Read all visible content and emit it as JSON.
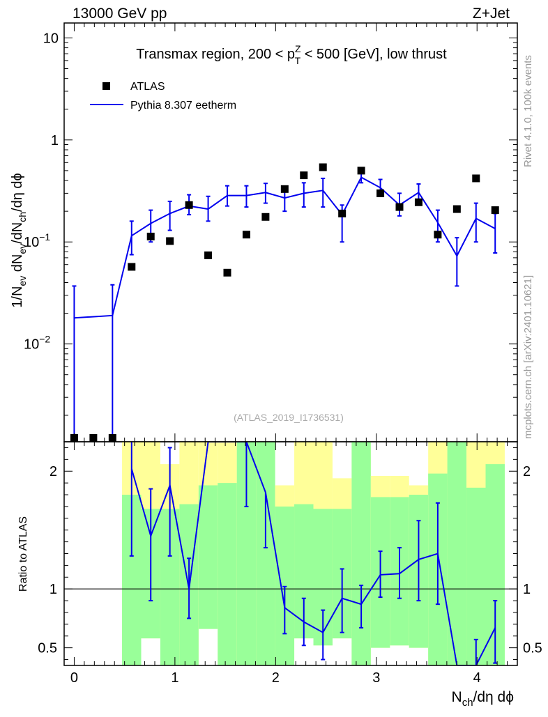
{
  "header": {
    "energy_label": "13000 GeV pp",
    "process_label": "Z+Jet"
  },
  "side_labels": {
    "rivet": "Rivet 4.1.0,  100k events",
    "mcplots": "mcplots.cern.ch [arXiv:2401.10621]"
  },
  "colors": {
    "mc_line": "#0000ee",
    "data_marker": "#000000",
    "band_inner": "#99ff99",
    "band_outer": "#ffff99",
    "frame": "#000000"
  },
  "chart_data": [
    {
      "type": "scatter",
      "name": "main",
      "title": "Transmax region, 200 < p_T^Z < 500 [GeV], low thrust",
      "title_parts": {
        "pre": "Transmax region, 200 < p",
        "sup": "Z",
        "sub": "T",
        "post": " < 500 [GeV], low thrust"
      },
      "ylabel": "1/N_ev dN_ev/dN_ch/dη dϕ",
      "yscale": "log",
      "ylim": [
        0.0011,
        14
      ],
      "xlim": [
        -0.1,
        4.4
      ],
      "yticks": [
        {
          "value": 10,
          "label": "10",
          "exp": ""
        },
        {
          "value": 1,
          "label": "1",
          "exp": ""
        },
        {
          "value": 0.1,
          "label": "10",
          "exp": "−1"
        },
        {
          "value": 0.01,
          "label": "10",
          "exp": "−2"
        }
      ],
      "watermark": "(ATLAS_2019_I1736531)",
      "legend": [
        {
          "label": "ATLAS",
          "kind": "marker"
        },
        {
          "label": "Pythia 8.307 eetherm",
          "kind": "line"
        }
      ],
      "data_series": {
        "name": "ATLAS",
        "x": [
          0,
          0.19,
          0.38,
          0.57,
          0.76,
          0.95,
          1.14,
          1.33,
          1.52,
          1.71,
          1.9,
          2.09,
          2.28,
          2.47,
          2.66,
          2.85,
          3.04,
          3.23,
          3.42,
          3.61,
          3.8,
          3.99,
          4.18
        ],
        "y": [
          0.0012,
          0.0012,
          0.0012,
          0.057,
          0.113,
          0.102,
          0.23,
          0.074,
          0.05,
          0.118,
          0.176,
          0.33,
          0.45,
          0.54,
          0.19,
          0.5,
          0.3,
          0.22,
          0.245,
          0.118,
          0.21,
          0.42,
          0.205
        ]
      },
      "mc_series": {
        "name": "Pythia 8.307 eetherm",
        "x": [
          0,
          0.38,
          0.57,
          0.76,
          0.95,
          1.14,
          1.33,
          1.52,
          1.71,
          1.9,
          2.09,
          2.28,
          2.47,
          2.66,
          2.85,
          3.04,
          3.23,
          3.42,
          3.61,
          3.8,
          3.99,
          4.18
        ],
        "y": [
          0.018,
          0.019,
          0.115,
          0.152,
          0.19,
          0.225,
          0.21,
          0.285,
          0.285,
          0.305,
          0.27,
          0.3,
          0.32,
          0.185,
          0.43,
          0.34,
          0.23,
          0.305,
          0.155,
          0.073,
          0.17,
          0.135
        ],
        "ylo": [
          0.0011,
          0.0011,
          0.075,
          0.1,
          0.13,
          0.185,
          0.16,
          0.225,
          0.22,
          0.24,
          0.2,
          0.22,
          0.22,
          0.1,
          0.38,
          0.28,
          0.18,
          0.24,
          0.1,
          0.037,
          0.1,
          0.078
        ],
        "yhi": [
          0.037,
          0.038,
          0.16,
          0.205,
          0.25,
          0.29,
          0.28,
          0.355,
          0.355,
          0.375,
          0.35,
          0.38,
          0.42,
          0.23,
          0.48,
          0.41,
          0.3,
          0.37,
          0.205,
          0.11,
          0.24,
          0.19
        ]
      },
      "errorbar_points": [
        0,
        1,
        0,
        2,
        3,
        4,
        5,
        6,
        7,
        8,
        9,
        10,
        11,
        12,
        13,
        14,
        15,
        16,
        17,
        18,
        19,
        20,
        21
      ],
      "xticks": [
        0,
        1,
        2,
        3,
        4
      ]
    },
    {
      "type": "line",
      "name": "ratio",
      "ylabel": "Ratio to ATLAS",
      "xlabel": "N_ch/dη dϕ",
      "xlabel_parts": {
        "pre": "N",
        "sub": "ch",
        "post": "/dη dϕ"
      },
      "yscale": "linear",
      "ylim": [
        0.35,
        2.25
      ],
      "xlim": [
        -0.1,
        4.4
      ],
      "xticks": [
        0,
        1,
        2,
        3,
        4
      ],
      "yticks": [
        2,
        1,
        0.5
      ],
      "ytick_labels": [
        "2",
        "1",
        "0.5"
      ],
      "reference_line": 1,
      "bands": {
        "edges": [
          0.475,
          0.665,
          0.855,
          1.045,
          1.235,
          1.425,
          1.615,
          1.805,
          1.995,
          2.185,
          2.375,
          2.565,
          2.755,
          2.945,
          3.135,
          3.325,
          3.515,
          3.705,
          3.895,
          4.085,
          4.275
        ],
        "inner_lo": [
          0.35,
          0.35,
          0.35,
          0.35,
          0.35,
          0.35,
          0.35,
          0.35,
          0.35,
          0.35,
          0.35,
          0.35,
          0.35,
          0.35,
          0.35,
          0.35,
          0.35,
          0.35,
          0.35,
          0.35
        ],
        "inner_hi": [
          1.8,
          1.68,
          1.68,
          1.72,
          1.88,
          1.9,
          2.25,
          2.25,
          1.7,
          1.72,
          1.68,
          1.68,
          2.25,
          1.78,
          1.78,
          1.8,
          1.98,
          2.25,
          1.86,
          2.06
        ],
        "outer_lo": [
          0.35,
          0.58,
          0.35,
          0.35,
          0.66,
          0.35,
          0.35,
          0.35,
          0.35,
          0.58,
          0.52,
          0.58,
          0.35,
          0.5,
          0.52,
          0.5,
          0.35,
          0.35,
          0.35,
          0.35
        ],
        "outer_hi": [
          2.25,
          2.25,
          2.06,
          2.25,
          2.25,
          2.25,
          2.25,
          2.25,
          1.88,
          2.25,
          2.25,
          1.94,
          2.25,
          1.96,
          1.96,
          1.88,
          2.25,
          2.25,
          2.25,
          2.25
        ]
      },
      "ratio_series": {
        "name": "Pythia 8.307 eetherm / ATLAS",
        "x": [
          0.57,
          0.76,
          0.95,
          1.14,
          1.33,
          1.71,
          1.9,
          2.09,
          2.28,
          2.47,
          2.66,
          2.85,
          3.04,
          3.23,
          3.42,
          3.61,
          3.8,
          3.99,
          4.18
        ],
        "y": [
          2.02,
          1.45,
          1.88,
          1.0,
          2.9,
          2.45,
          1.82,
          0.84,
          0.72,
          0.63,
          0.92,
          0.87,
          1.12,
          1.13,
          1.25,
          1.3,
          0.1,
          0.35,
          0.67
        ],
        "ylo": [
          1.28,
          0.9,
          1.28,
          0.75,
          null,
          1.7,
          1.35,
          0.62,
          0.52,
          0.4,
          0.63,
          0.67,
          0.93,
          0.92,
          0.9,
          0.87,
          null,
          null,
          0.37
        ],
        "yhi": [
          2.25,
          1.85,
          2.2,
          1.26,
          null,
          null,
          null,
          1.02,
          0.92,
          0.82,
          1.17,
          1.03,
          1.32,
          1.35,
          1.58,
          1.73,
          null,
          0.57,
          0.9
        ]
      }
    }
  ]
}
